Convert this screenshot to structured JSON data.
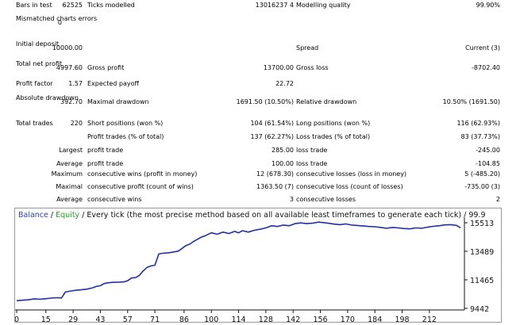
{
  "report": {
    "rows": [
      {
        "label": "Bars in test",
        "v1": "62525",
        "l2": "Ticks modelled",
        "v2": "13016237 4",
        "l3": "Modelling quality",
        "v3": "99.90%"
      },
      {
        "label": "Mismatched charts errors",
        "v1": "0"
      },
      {
        "label": "Initial deposit",
        "v1": "10000.00",
        "l3": "Spread",
        "v3": "Current (3)"
      },
      {
        "label": "Total net profit",
        "v1": "4997.60",
        "l2": "Gross profit",
        "v2": "13700.00",
        "l3": "Gross loss",
        "v3": "-8702.40"
      },
      {
        "label": "Profit factor",
        "v1": "1.57",
        "l2": "Expected payoff",
        "v2": "22.72"
      },
      {
        "label": "Absolute drawdown",
        "v1": "392.70",
        "l2": "Maximal drawdown",
        "v2": "1691.50 (10.50%)",
        "l3": "Relative drawdown",
        "v3": "10.50% (1691.50)"
      },
      {
        "label": "Total trades",
        "v1": "220",
        "l2": "Short positions (won %)",
        "v2": "104 (61.54%)",
        "l3": "Long positions (won %)",
        "v3": "116 (62.93%)"
      },
      {
        "l2": "Profit trades (% of total)",
        "v2": "137 (62.27%)",
        "l3": "Loss trades (% of total)",
        "v3": "83 (37.73%)"
      },
      {
        "sub": "Largest",
        "l2": "profit trade",
        "v2": "285.00",
        "l3": "loss trade",
        "v3": "-245.00"
      },
      {
        "sub": "Average",
        "l2": "profit trade",
        "v2": "100.00",
        "l3": "loss trade",
        "v3": "-104.85"
      },
      {
        "sub": "Maximum",
        "l2": "consecutive wins (profit in money)",
        "v2": "12 (678.30)",
        "l3": "consecutive losses (loss in money)",
        "v3": "5 (-485.20)"
      },
      {
        "sub": "Maximal",
        "l2": "consecutive profit (count of wins)",
        "v2": "1363.50 (7)",
        "l3": "consecutive loss (count of losses)",
        "v3": "-735.00 (3)"
      },
      {
        "sub": "Average",
        "l2": "consecutive wins",
        "v2": "3",
        "l3": "consecutive losses",
        "v3": "2"
      }
    ]
  },
  "chart": {
    "title_balance": "Balance",
    "title_sep": " / ",
    "title_equity": "Equity",
    "title_rest": " / Every tick (the most precise method based on all available least timeframes to generate each tick) / 99.9",
    "colors": {
      "balance": "#1f2fa8",
      "equity": "#23a223",
      "grid": "#e6e6e6",
      "axis": "#111111"
    }
  },
  "chart_data": {
    "type": "line",
    "xlabel": "",
    "ylabel": "",
    "x_ticks": [
      "0",
      "15",
      "29",
      "43",
      "57",
      "71",
      "86",
      "100",
      "114",
      "128",
      "142",
      "156",
      "170",
      "184",
      "198",
      "212"
    ],
    "y_ticks": [
      "15513",
      "13489",
      "11465",
      "9442"
    ],
    "xlim": [
      0,
      230
    ],
    "ylim": [
      9442,
      15513
    ],
    "series": [
      {
        "values": [
          [
            0,
            9980
          ],
          [
            3,
            10020
          ],
          [
            6,
            10050
          ],
          [
            9,
            10110
          ],
          [
            12,
            10090
          ],
          [
            15,
            10130
          ],
          [
            18,
            10170
          ],
          [
            21,
            10200
          ],
          [
            23,
            10180
          ],
          [
            25,
            10600
          ],
          [
            28,
            10680
          ],
          [
            30,
            10720
          ],
          [
            33,
            10760
          ],
          [
            36,
            10800
          ],
          [
            39,
            10900
          ],
          [
            41,
            11000
          ],
          [
            43,
            11050
          ],
          [
            45,
            11200
          ],
          [
            47,
            11260
          ],
          [
            50,
            11290
          ],
          [
            53,
            11300
          ],
          [
            55,
            11320
          ],
          [
            57,
            11400
          ],
          [
            59,
            11600
          ],
          [
            61,
            11620
          ],
          [
            63,
            11780
          ],
          [
            65,
            12100
          ],
          [
            67,
            12350
          ],
          [
            69,
            12450
          ],
          [
            71,
            12500
          ],
          [
            73,
            13300
          ],
          [
            75,
            13350
          ],
          [
            78,
            13380
          ],
          [
            81,
            13450
          ],
          [
            83,
            13500
          ],
          [
            85,
            13700
          ],
          [
            87,
            13900
          ],
          [
            89,
            14000
          ],
          [
            91,
            14200
          ],
          [
            93,
            14350
          ],
          [
            95,
            14500
          ],
          [
            97,
            14600
          ],
          [
            100,
            14800
          ],
          [
            103,
            14700
          ],
          [
            106,
            14850
          ],
          [
            109,
            14750
          ],
          [
            112,
            14900
          ],
          [
            114,
            14800
          ],
          [
            116,
            14950
          ],
          [
            119,
            14850
          ],
          [
            122,
            14980
          ],
          [
            125,
            15050
          ],
          [
            128,
            15150
          ],
          [
            131,
            15300
          ],
          [
            134,
            15250
          ],
          [
            137,
            15350
          ],
          [
            140,
            15300
          ],
          [
            143,
            15450
          ],
          [
            146,
            15500
          ],
          [
            149,
            15450
          ],
          [
            152,
            15480
          ],
          [
            155,
            15560
          ],
          [
            158,
            15520
          ],
          [
            160,
            15480
          ],
          [
            163,
            15420
          ],
          [
            166,
            15380
          ],
          [
            169,
            15430
          ],
          [
            172,
            15350
          ],
          [
            175,
            15320
          ],
          [
            178,
            15280
          ],
          [
            181,
            15250
          ],
          [
            184,
            15230
          ],
          [
            187,
            15180
          ],
          [
            190,
            15120
          ],
          [
            193,
            15180
          ],
          [
            196,
            15150
          ],
          [
            199,
            15100
          ],
          [
            202,
            15080
          ],
          [
            205,
            15150
          ],
          [
            208,
            15120
          ],
          [
            211,
            15200
          ],
          [
            214,
            15260
          ],
          [
            217,
            15300
          ],
          [
            220,
            15360
          ],
          [
            223,
            15380
          ],
          [
            226,
            15320
          ],
          [
            228,
            15150
          ]
        ]
      }
    ]
  }
}
